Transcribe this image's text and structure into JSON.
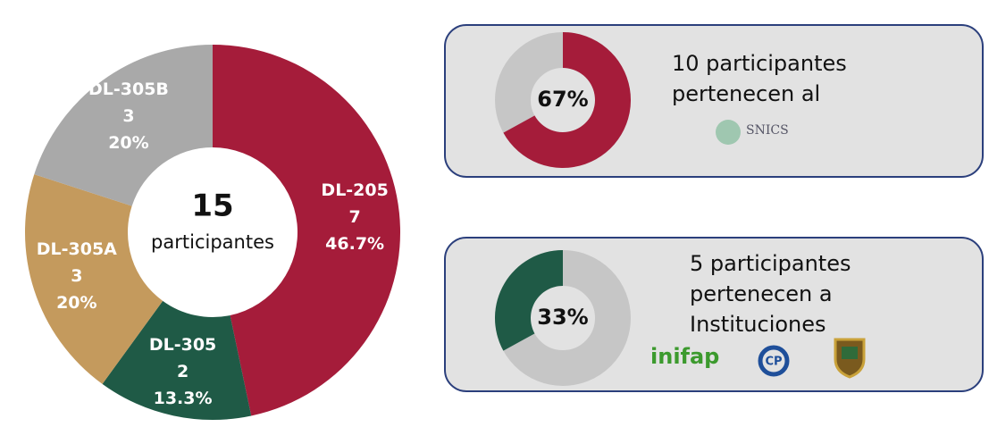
{
  "chart_data": [
    {
      "type": "donut",
      "categories": [
        "DL-205",
        "DL-305",
        "DL-305A",
        "DL-305B"
      ],
      "values": [
        46.7,
        13.3,
        20,
        20
      ],
      "value_labels": [
        "46.7%",
        "13.3%",
        "20%",
        "20%"
      ],
      "counts": [
        7,
        2,
        3,
        3
      ],
      "colors": [
        "#a51c3a",
        "#1f5a46",
        "#c49a5d",
        "#a9a9a9"
      ],
      "total": 15,
      "center_label": "participantes"
    },
    {
      "type": "donut-gauge",
      "values": [
        67
      ],
      "value_labels": [
        "67%"
      ],
      "color": "#a51c3a",
      "track_color": "#c6c6c6",
      "clockwise": true,
      "caption": [
        "10 participantes",
        "pertenecen al"
      ],
      "logos": [
        "SNICS"
      ]
    },
    {
      "type": "donut-gauge",
      "values": [
        33
      ],
      "value_labels": [
        "33%"
      ],
      "color": "#1f5a46",
      "track_color": "#c6c6c6",
      "clockwise": false,
      "caption": [
        "5 participantes",
        "pertenecen a",
        "Instituciones"
      ],
      "logos": [
        "inifap",
        "CP"
      ]
    }
  ]
}
